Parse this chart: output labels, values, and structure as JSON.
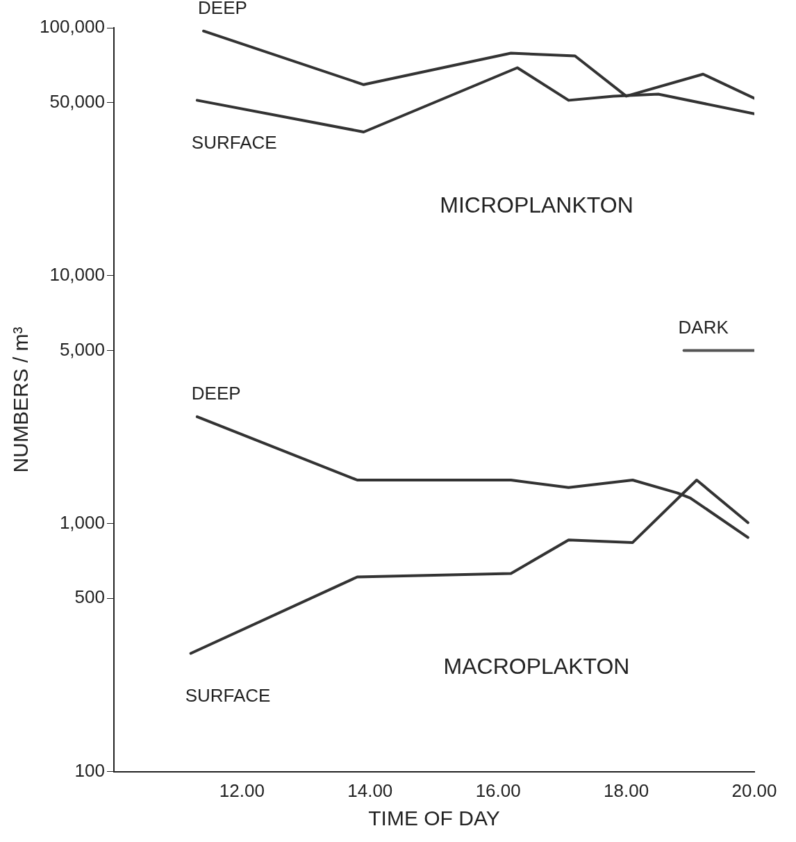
{
  "chart_data": {
    "type": "line",
    "xlabel": "TIME OF DAY",
    "ylabel": "NUMBERS / m³",
    "xlim": [
      10,
      20
    ],
    "xticks": [
      {
        "value": 12,
        "label": "12.00"
      },
      {
        "value": 14,
        "label": "14.00"
      },
      {
        "value": 16,
        "label": "16.00"
      },
      {
        "value": 18,
        "label": "18.00"
      },
      {
        "value": 20,
        "label": "20.00"
      }
    ],
    "ylim": [
      100,
      100000
    ],
    "yticks": [
      {
        "value": 100,
        "label": "100"
      },
      {
        "value": 500,
        "label": "500"
      },
      {
        "value": 1000,
        "label": "1,000"
      },
      {
        "value": 5000,
        "label": "5,000"
      },
      {
        "value": 10000,
        "label": "10,000"
      },
      {
        "value": 50000,
        "label": "50,000"
      },
      {
        "value": 100000,
        "label": "100,000"
      }
    ],
    "log": "y",
    "grid": false,
    "legend": false,
    "marker": "none",
    "line_style": "solid",
    "series": [
      {
        "name": "DEEP",
        "color": "#333333",
        "x": [
          11.4,
          13.9,
          16.2,
          17.2,
          18.0,
          19.2,
          20.0
        ],
        "values": [
          97000,
          59000,
          79000,
          77000,
          53000,
          65000,
          52000
        ]
      },
      {
        "name": "SURFACE",
        "color": "#333333",
        "x": [
          11.3,
          13.9,
          16.3,
          17.1,
          17.8,
          18.5,
          20.0
        ],
        "values": [
          51000,
          38000,
          69000,
          51000,
          53000,
          54000,
          45000
        ]
      },
      {
        "name": "DEEP",
        "color": "#333333",
        "x": [
          11.3,
          13.8,
          16.2,
          17.1,
          18.1,
          18.8,
          19.0,
          19.9
        ],
        "values": [
          2700,
          1500,
          1500,
          1400,
          1500,
          1330,
          1270,
          880
        ]
      },
      {
        "name": "SURFACE",
        "color": "#333333",
        "x": [
          11.2,
          13.8,
          16.2,
          17.1,
          18.1,
          19.1,
          19.9
        ],
        "values": [
          300,
          610,
          630,
          860,
          840,
          1500,
          1010
        ]
      },
      {
        "name": "DARK",
        "color": "#555555",
        "x": [
          18.9,
          20
        ],
        "values": [
          5000,
          5000
        ]
      }
    ],
    "annotations": [
      "MICROPLANKTON",
      "MACROPLAKTON"
    ]
  }
}
